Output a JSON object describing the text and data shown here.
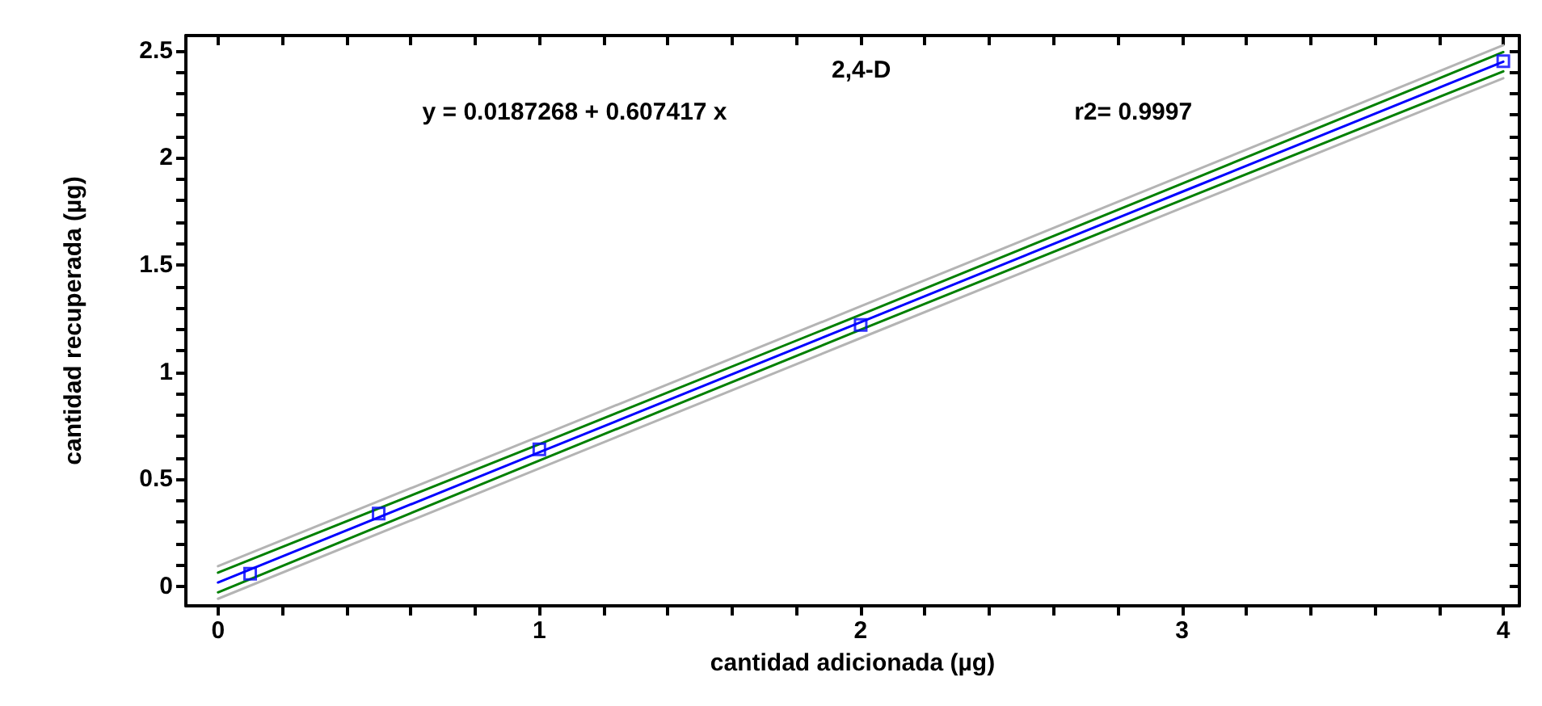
{
  "chart_data": {
    "type": "scatter",
    "xlabel": "cantidad adicionada (µg)",
    "ylabel": "cantidad recuperada (µg)",
    "annotations": [
      "2,4-D",
      "y = 0.0187268 + 0.607417 x",
      "r2= 0.9997"
    ],
    "x": [
      0.1,
      0.5,
      1,
      2,
      4
    ],
    "series": [
      {
        "type": "scatter",
        "color": "#0000ff",
        "marker": "square",
        "values": [
          0.06,
          0.34,
          0.64,
          1.22,
          2.45
        ]
      },
      {
        "type": "line",
        "color": "#0000ff",
        "marker": "none",
        "x": [
          0,
          1,
          2,
          3,
          4
        ],
        "values": [
          0.019,
          0.626,
          1.233,
          1.841,
          2.448
        ]
      },
      {
        "type": "line",
        "color": "#008000",
        "marker": "none",
        "x": [
          0,
          1,
          2,
          3,
          4
        ],
        "values": [
          0.065,
          0.664,
          1.268,
          1.879,
          2.493
        ]
      },
      {
        "type": "line",
        "color": "#008000",
        "marker": "none",
        "x": [
          0,
          1,
          2,
          3,
          4
        ],
        "values": [
          -0.027,
          0.588,
          1.198,
          1.803,
          2.403
        ]
      },
      {
        "type": "line",
        "color": "#b4b4b4",
        "marker": "none",
        "x": [
          0,
          1,
          2,
          3,
          4
        ],
        "values": [
          0.095,
          0.701,
          1.307,
          1.916,
          2.525
        ]
      },
      {
        "type": "line",
        "color": "#b4b4b4",
        "marker": "none",
        "x": [
          0,
          1,
          2,
          3,
          4
        ],
        "values": [
          -0.057,
          0.551,
          1.159,
          1.766,
          2.371
        ]
      }
    ],
    "xlim": [
      -0.1,
      4.05
    ],
    "xticks": [
      0,
      {
        "value": 0.2,
        "label": null
      },
      {
        "value": 0.4,
        "label": null
      },
      {
        "value": 0.6,
        "label": null
      },
      {
        "value": 0.8,
        "label": null
      },
      1,
      {
        "value": 1.2,
        "label": null
      },
      {
        "value": 1.4,
        "label": null
      },
      {
        "value": 1.6,
        "label": null
      },
      {
        "value": 1.8,
        "label": null
      },
      2,
      {
        "value": 2.2,
        "label": null
      },
      {
        "value": 2.4,
        "label": null
      },
      {
        "value": 2.6,
        "label": null
      },
      {
        "value": 2.8,
        "label": null
      },
      3,
      {
        "value": 3.2,
        "label": null
      },
      {
        "value": 3.4,
        "label": null
      },
      {
        "value": 3.6,
        "label": null
      },
      {
        "value": 3.8,
        "label": null
      },
      4
    ],
    "ylim": [
      -0.09,
      2.57
    ],
    "yticks": [
      0,
      {
        "value": 0.1,
        "label": null
      },
      {
        "value": 0.2,
        "label": null
      },
      {
        "value": 0.3,
        "label": null
      },
      {
        "value": 0.4,
        "label": null
      },
      0.5,
      {
        "value": 0.6,
        "label": null
      },
      {
        "value": 0.7,
        "label": null
      },
      {
        "value": 0.8,
        "label": null
      },
      {
        "value": 0.9,
        "label": null
      },
      1,
      {
        "value": 1.1,
        "label": null
      },
      {
        "value": 1.2,
        "label": null
      },
      {
        "value": 1.3,
        "label": null
      },
      {
        "value": 1.4,
        "label": null
      },
      1.5,
      {
        "value": 1.6,
        "label": null
      },
      {
        "value": 1.7,
        "label": null
      },
      {
        "value": 1.8,
        "label": null
      },
      {
        "value": 1.9,
        "label": null
      },
      2,
      {
        "value": 2.1,
        "label": null
      },
      {
        "value": 2.2,
        "label": null
      },
      {
        "value": 2.3,
        "label": null
      },
      {
        "value": 2.4,
        "label": null
      },
      2.5
    ],
    "grid": false
  }
}
